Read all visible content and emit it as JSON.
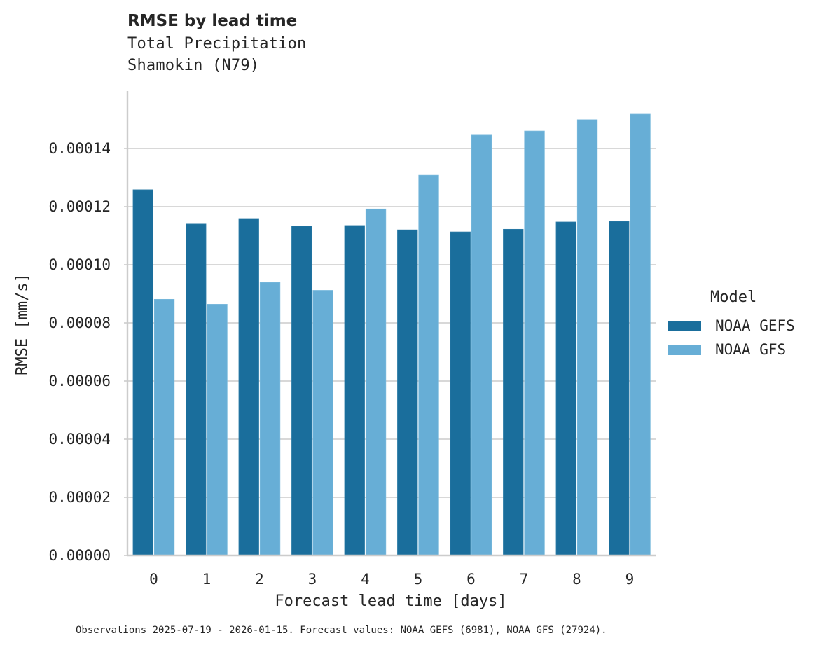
{
  "header": {
    "title": "RMSE by lead time",
    "subtitle_line1": "Total Precipitation",
    "subtitle_line2": "Shamokin (N79)"
  },
  "axes": {
    "xlabel": "Forecast lead time [days]",
    "ylabel": "RMSE [mm/s]"
  },
  "legend": {
    "title": "Model",
    "items": [
      {
        "label": "NOAA GEFS",
        "color": "#1a6e9c"
      },
      {
        "label": "NOAA GFS",
        "color": "#67aed6"
      }
    ]
  },
  "footer": {
    "note": "Observations 2025-07-19 - 2026-01-15. Forecast values: NOAA GEFS (6981), NOAA GFS (27924)."
  },
  "colors": {
    "gefs": "#1a6e9c",
    "gfs": "#67aed6",
    "grid": "#cccccc",
    "spine": "#cccccc",
    "text": "#262626"
  },
  "chart_data": {
    "type": "bar",
    "title": "RMSE by lead time",
    "subtitle": "Total Precipitation / Shamokin (N79)",
    "xlabel": "Forecast lead time [days]",
    "ylabel": "RMSE [mm/s]",
    "categories": [
      "0",
      "1",
      "2",
      "3",
      "4",
      "5",
      "6",
      "7",
      "8",
      "9"
    ],
    "series": [
      {
        "name": "NOAA GEFS",
        "color": "#1a6e9c",
        "values": [
          0.0001258,
          0.000114,
          0.0001159,
          0.0001133,
          0.0001135,
          0.000112,
          0.0001113,
          0.0001122,
          0.0001147,
          0.0001149
        ]
      },
      {
        "name": "NOAA GFS",
        "color": "#67aed6",
        "values": [
          8.81e-05,
          8.64e-05,
          9.39e-05,
          9.12e-05,
          0.0001192,
          0.0001308,
          0.0001446,
          0.000146,
          0.0001499,
          0.0001518
        ]
      }
    ],
    "yticks": [
      "0.00000",
      "0.00002",
      "0.00004",
      "0.00006",
      "0.00008",
      "0.00010",
      "0.00012",
      "0.00014"
    ],
    "ylim": [
      0,
      0.00016
    ],
    "grid": "horizontal",
    "legend_position": "right",
    "legend_title": "Model"
  }
}
